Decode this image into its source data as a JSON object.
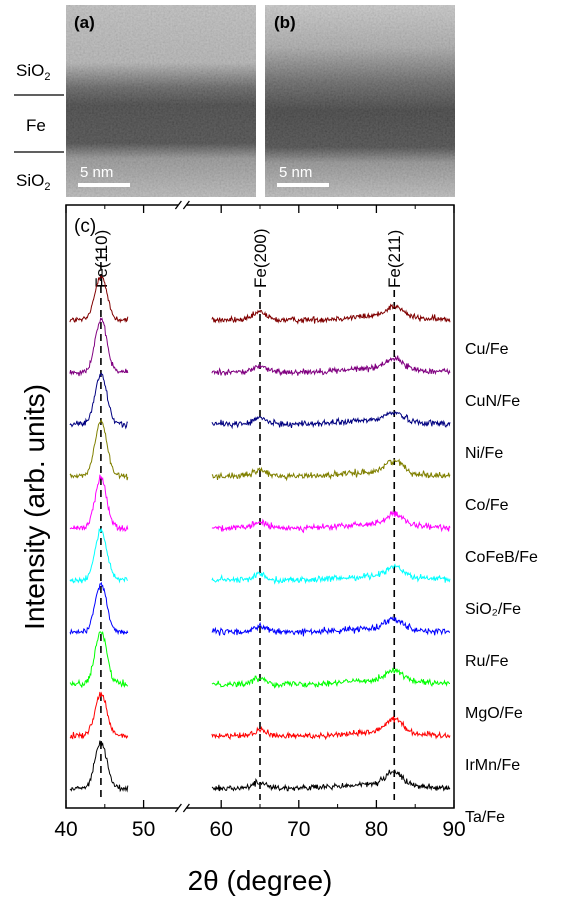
{
  "tem": {
    "panel_a_label": "(a)",
    "panel_b_label": "(b)",
    "layer_top": "SiO",
    "layer_mid": "Fe",
    "layer_bottom": "SiO",
    "sub2": "2",
    "scale_bar_a": "5 nm",
    "scale_bar_b": "5 nm"
  },
  "chart_data": {
    "type": "line",
    "panel_label": "(c)",
    "xlabel": "2θ (degree)",
    "ylabel": "Intensity (arb. units)",
    "xlim": [
      40,
      90
    ],
    "x_break": [
      48,
      59
    ],
    "xticks": [
      40,
      50,
      60,
      70,
      80,
      90
    ],
    "xtick_labels": [
      "40",
      "50",
      "60",
      "70",
      "80",
      "90"
    ],
    "y_units": "arbitrary (curves vertically offset)",
    "grid": false,
    "reference_lines": [
      {
        "x": 44.5,
        "label": "Fe(110)"
      },
      {
        "x": 65.0,
        "label": "Fe(200)"
      },
      {
        "x": 82.3,
        "label": "Fe(211)"
      }
    ],
    "series": [
      {
        "name": "Cu/Fe",
        "color": "#800000",
        "peak110": 45,
        "peak200": 8,
        "peak211": 10
      },
      {
        "name": "CuN/Fe",
        "color": "#800080",
        "peak110": 52,
        "peak200": 6,
        "peak211": 10
      },
      {
        "name": "Ni/Fe",
        "color": "#000080",
        "peak110": 50,
        "peak200": 6,
        "peak211": 8
      },
      {
        "name": "Co/Fe",
        "color": "#808000",
        "peak110": 55,
        "peak200": 6,
        "peak211": 12
      },
      {
        "name": "CoFeB/Fe",
        "color": "#ff00ff",
        "peak110": 50,
        "peak200": 6,
        "peak211": 10
      },
      {
        "name": "SiO₂/Fe",
        "color": "#00ffff",
        "peak110": 50,
        "peak200": 6,
        "peak211": 10
      },
      {
        "name": "Ru/Fe",
        "color": "#0000ff",
        "peak110": 48,
        "peak200": 6,
        "peak211": 10
      },
      {
        "name": "MgO/Fe",
        "color": "#00ff00",
        "peak110": 52,
        "peak200": 6,
        "peak211": 10
      },
      {
        "name": "IrMn/Fe",
        "color": "#ff0000",
        "peak110": 42,
        "peak200": 6,
        "peak211": 14
      },
      {
        "name": "Ta/Fe",
        "color": "#000000",
        "peak110": 46,
        "peak200": 6,
        "peak211": 12
      }
    ]
  }
}
